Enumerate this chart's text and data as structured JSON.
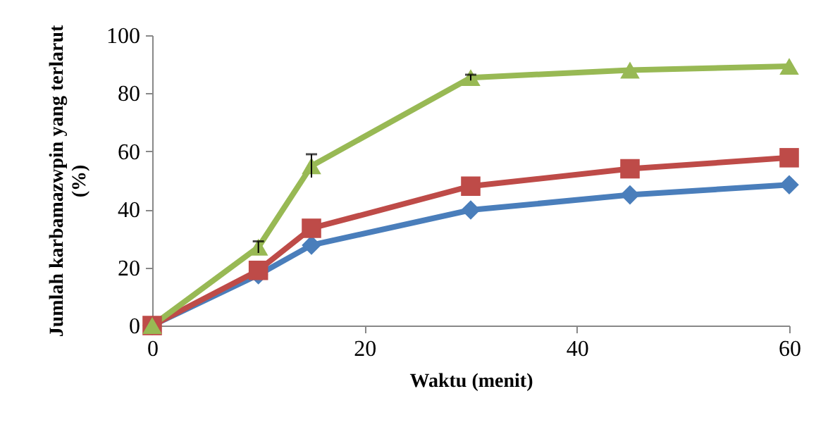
{
  "chart_data": {
    "type": "line",
    "xlabel": "Waktu (menit)",
    "ylabel": "Jumlah karbamazwpin yang terlarut (%)",
    "x": [
      0,
      10,
      15,
      30,
      45,
      60
    ],
    "series": [
      {
        "color": "#4a7ebb",
        "marker": "diamond",
        "values": [
          0,
          17.5,
          27.7,
          39.8,
          45,
          48.5
        ]
      },
      {
        "color": "#be4b48",
        "marker": "square",
        "values": [
          0,
          19,
          33.5,
          48,
          54,
          57.8
        ]
      },
      {
        "color": "#98b954",
        "marker": "triangle",
        "values": [
          0,
          27,
          55,
          85.4,
          88,
          89.3
        ],
        "errors": [
          null,
          2,
          4,
          1,
          null,
          null
        ]
      }
    ],
    "xlim": [
      0,
      60
    ],
    "xticks": [
      0,
      20,
      40,
      60
    ],
    "ylim": [
      0,
      100
    ],
    "yticks": [
      0,
      20,
      40,
      60,
      80,
      100
    ],
    "grid": false,
    "legend": false,
    "line_style": "solid"
  }
}
